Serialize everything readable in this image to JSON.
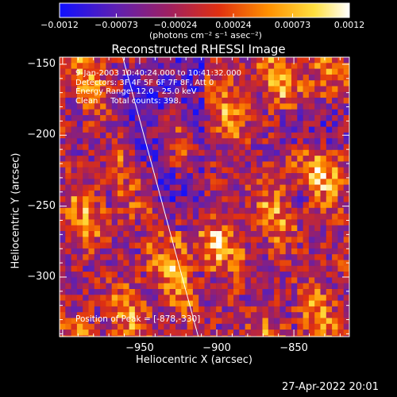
{
  "chart_data": {
    "type": "heatmap",
    "title": "Reconstructed RHESSI Image",
    "xlabel": "Heliocentric X (arcsec)",
    "ylabel": "Heliocentric Y (arcsec)",
    "xlim": [
      -1002,
      -814
    ],
    "ylim": [
      -342,
      -145
    ],
    "x_ticks": [
      {
        "value": -950,
        "label": "−950"
      },
      {
        "value": -900,
        "label": "−900"
      },
      {
        "value": -850,
        "label": "−850"
      }
    ],
    "y_ticks": [
      {
        "value": -150,
        "label": "−150"
      },
      {
        "value": -200,
        "label": "−200"
      },
      {
        "value": -250,
        "label": "−250"
      },
      {
        "value": -300,
        "label": "−300"
      }
    ],
    "colorbar": {
      "range": [
        -0.0012,
        0.0012
      ],
      "ticks": [
        {
          "value": -0.0012,
          "label": "−0.0012"
        },
        {
          "value": -0.00073,
          "label": "−0.00073"
        },
        {
          "value": -0.00024,
          "label": "−0.00024"
        },
        {
          "value": 0.00024,
          "label": "0.00024"
        },
        {
          "value": 0.00073,
          "label": "0.00073"
        },
        {
          "value": 0.0012,
          "label": "0.0012"
        }
      ],
      "units_label": "(photons cm⁻² s⁻¹ asec⁻²)",
      "colors": [
        "#1010ff",
        "#6020b0",
        "#a02060",
        "#e03010",
        "#ff9000",
        "#ffe040",
        "#ffffff"
      ]
    },
    "info_lines": [
      "9-Jan-2003 10:40:24.000 to 10:41:32.000",
      "Detectors: 3F 4F 5F 6F 7F 8F, Att 0",
      "Energy Range: 12.0 - 25.0 keV",
      "Clean     Total counts: 398."
    ],
    "peak_label": "Position of Peak = [-878,-330]",
    "peak": {
      "x": -878,
      "y": -330
    },
    "limb_line": [
      {
        "x": -961,
        "y": -145
      },
      {
        "x": -912,
        "y": -342
      }
    ]
  },
  "footer": {
    "timestamp": "27-Apr-2022 20:01"
  }
}
